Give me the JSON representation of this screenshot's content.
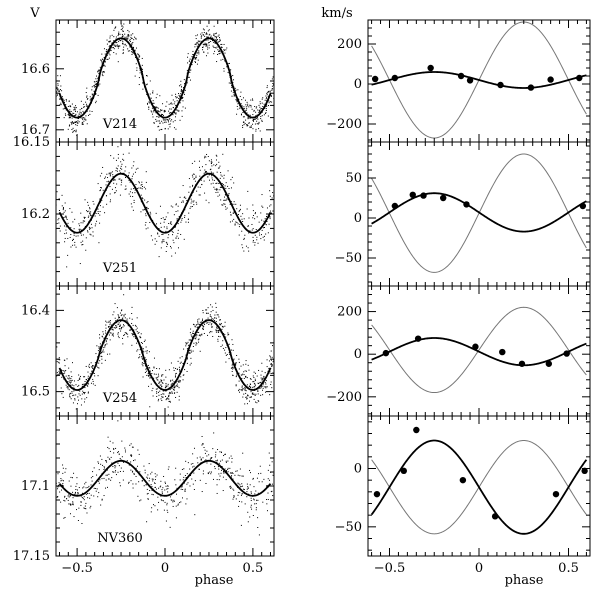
{
  "figure": {
    "x_label": "phase",
    "v_axis_label": "V",
    "rv_axis_label": "km/s",
    "x_range": [
      -0.62,
      0.62
    ],
    "x_ticks": [
      -0.5,
      0,
      0.5
    ],
    "x_tick_labels": [
      "−0.5",
      "0",
      "0.5"
    ]
  },
  "chart_data": [
    {
      "type": "scatter",
      "column": "light_curve",
      "row": 0,
      "star": "V214",
      "ylabel": "V",
      "inverted_y": true,
      "ylim": [
        16.72,
        16.52
      ],
      "y_ticks": [
        16.6,
        16.7
      ],
      "y_tick_labels": [
        "16.6",
        "16.7"
      ],
      "model": {
        "mean": 16.615,
        "amplitude": 0.065,
        "sharpness": 0.2
      },
      "point_count": 1100,
      "point_scatter": 0.012
    },
    {
      "type": "scatter",
      "column": "light_curve",
      "row": 1,
      "star": "V251",
      "ylabel": "",
      "inverted_y": true,
      "ylim": [
        16.25,
        16.15
      ],
      "y_ticks": [
        16.15,
        16.2
      ],
      "y_tick_labels": [
        "16.15",
        "16.2"
      ],
      "model": {
        "mean": 16.1925,
        "amplitude": 0.0205,
        "sharpness": 0
      },
      "point_count": 700,
      "point_scatter": 0.0085
    },
    {
      "type": "scatter",
      "column": "light_curve",
      "row": 2,
      "star": "V254",
      "ylabel": "",
      "inverted_y": true,
      "ylim": [
        16.53,
        16.37
      ],
      "y_ticks": [
        16.4,
        16.5
      ],
      "y_tick_labels": [
        "16.4",
        "16.5"
      ],
      "model": {
        "mean": 16.455,
        "amplitude": 0.043,
        "sharpness": 0.15
      },
      "point_count": 1000,
      "point_scatter": 0.011
    },
    {
      "type": "scatter",
      "column": "light_curve",
      "row": 3,
      "star": "NV360",
      "ylabel": "",
      "inverted_y": true,
      "ylim": [
        17.15,
        17.05
      ],
      "y_ticks": [
        17.1,
        17.15
      ],
      "y_tick_labels": [
        "17.1",
        "17.15"
      ],
      "model": {
        "mean": 17.0945,
        "amplitude": 0.0125,
        "sharpness": 0
      },
      "point_count": 600,
      "point_scatter": 0.009
    },
    {
      "type": "line",
      "column": "radial_velocity",
      "row": 0,
      "ylabel": "km/s",
      "ylim": [
        -290,
        320
      ],
      "y_ticks": [
        200,
        0,
        -200
      ],
      "y_tick_labels": [
        "200",
        "0",
        "−200"
      ],
      "primary_fit": {
        "gamma": 20,
        "semi_amplitude": 40
      },
      "secondary_fit": {
        "gamma": 20,
        "semi_amplitude": 290
      },
      "observations": [
        {
          "phase": -0.58,
          "rv": 25
        },
        {
          "phase": -0.47,
          "rv": 30
        },
        {
          "phase": -0.27,
          "rv": 80
        },
        {
          "phase": -0.1,
          "rv": 40
        },
        {
          "phase": -0.05,
          "rv": 18
        },
        {
          "phase": 0.12,
          "rv": -5
        },
        {
          "phase": 0.29,
          "rv": -18
        },
        {
          "phase": 0.4,
          "rv": 22
        },
        {
          "phase": 0.56,
          "rv": 30
        }
      ]
    },
    {
      "type": "line",
      "column": "radial_velocity",
      "row": 1,
      "ylabel": "",
      "ylim": [
        -85,
        95
      ],
      "y_ticks": [
        50,
        0,
        -50
      ],
      "y_tick_labels": [
        "50",
        "0",
        "−50"
      ],
      "primary_fit": {
        "gamma": 7,
        "semi_amplitude": 24
      },
      "secondary_fit": {
        "gamma": 6,
        "semi_amplitude": 74
      },
      "observations": [
        {
          "phase": -0.47,
          "rv": 15
        },
        {
          "phase": -0.37,
          "rv": 29
        },
        {
          "phase": -0.31,
          "rv": 28
        },
        {
          "phase": -0.2,
          "rv": 25
        },
        {
          "phase": -0.07,
          "rv": 17
        },
        {
          "phase": 0.58,
          "rv": 15
        }
      ]
    },
    {
      "type": "line",
      "column": "radial_velocity",
      "row": 2,
      "ylabel": "",
      "ylim": [
        -290,
        320
      ],
      "y_ticks": [
        200,
        0,
        -200
      ],
      "y_tick_labels": [
        "200",
        "0",
        "−200"
      ],
      "primary_fit": {
        "gamma": 12,
        "semi_amplitude": 64
      },
      "secondary_fit": {
        "gamma": 20,
        "semi_amplitude": 200
      },
      "observations": [
        {
          "phase": -0.52,
          "rv": 5
        },
        {
          "phase": -0.34,
          "rv": 73
        },
        {
          "phase": -0.02,
          "rv": 35
        },
        {
          "phase": 0.13,
          "rv": 10
        },
        {
          "phase": 0.24,
          "rv": -45
        },
        {
          "phase": 0.39,
          "rv": -45
        },
        {
          "phase": 0.49,
          "rv": 3
        }
      ]
    },
    {
      "type": "line",
      "column": "radial_velocity",
      "row": 3,
      "ylabel": "",
      "ylim": [
        -75,
        45
      ],
      "y_ticks": [
        0,
        -50
      ],
      "y_tick_labels": [
        "0",
        "−50"
      ],
      "primary_fit": {
        "gamma": -16,
        "semi_amplitude": 40
      },
      "secondary_fit": {
        "gamma": -16,
        "semi_amplitude": 40
      },
      "observations": [
        {
          "phase": -0.57,
          "rv": -22
        },
        {
          "phase": -0.42,
          "rv": -2
        },
        {
          "phase": -0.35,
          "rv": 33
        },
        {
          "phase": -0.09,
          "rv": -10
        },
        {
          "phase": 0.09,
          "rv": -41
        },
        {
          "phase": 0.43,
          "rv": -22
        },
        {
          "phase": 0.59,
          "rv": -2
        }
      ]
    }
  ]
}
